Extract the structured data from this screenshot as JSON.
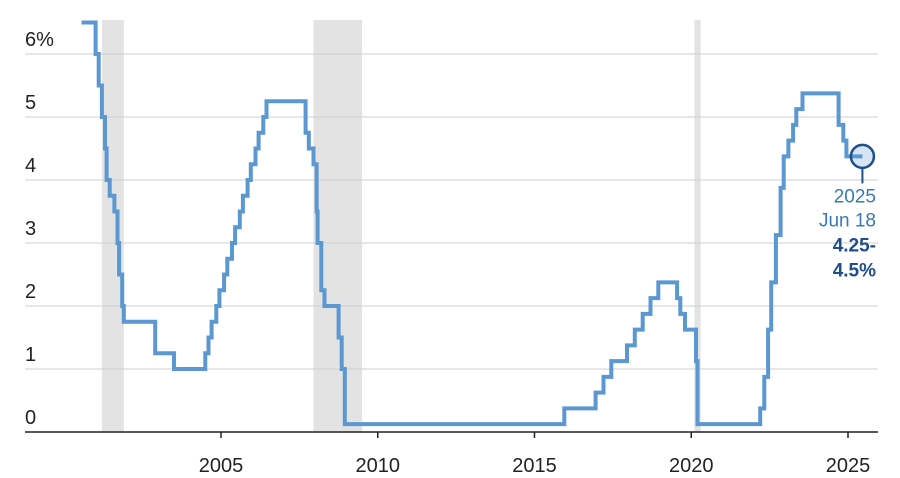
{
  "chart_data": {
    "type": "line",
    "title": "",
    "xlabel": "",
    "ylabel": "",
    "x_ticks": [
      2005,
      2010,
      2015,
      2020,
      2025
    ],
    "y_ticks": [
      {
        "value": 0,
        "label": "0"
      },
      {
        "value": 1,
        "label": "1"
      },
      {
        "value": 2,
        "label": "2"
      },
      {
        "value": 3,
        "label": "3"
      },
      {
        "value": 4,
        "label": "4"
      },
      {
        "value": 5,
        "label": "5"
      },
      {
        "value": 6,
        "label": "6%"
      }
    ],
    "xlim": [
      2000.0,
      2025.9
    ],
    "ylim": [
      0,
      6.6
    ],
    "grid": true,
    "recessions": [
      [
        2001.2,
        2001.9
      ],
      [
        2007.95,
        2009.5
      ],
      [
        2020.1,
        2020.3
      ]
    ],
    "series": [
      {
        "color": "#5b97d1",
        "points": [
          [
            2000.55,
            6.5
          ],
          [
            2001.0,
            6.5
          ],
          [
            2001.0,
            6.0
          ],
          [
            2001.1,
            6.0
          ],
          [
            2001.1,
            5.5
          ],
          [
            2001.2,
            5.5
          ],
          [
            2001.2,
            5.0
          ],
          [
            2001.3,
            5.0
          ],
          [
            2001.3,
            4.5
          ],
          [
            2001.35,
            4.5
          ],
          [
            2001.35,
            4.0
          ],
          [
            2001.45,
            4.0
          ],
          [
            2001.45,
            3.75
          ],
          [
            2001.6,
            3.75
          ],
          [
            2001.6,
            3.5
          ],
          [
            2001.7,
            3.5
          ],
          [
            2001.7,
            3.0
          ],
          [
            2001.75,
            3.0
          ],
          [
            2001.75,
            2.5
          ],
          [
            2001.85,
            2.5
          ],
          [
            2001.85,
            2.0
          ],
          [
            2001.9,
            2.0
          ],
          [
            2001.9,
            1.75
          ],
          [
            2002.9,
            1.75
          ],
          [
            2002.9,
            1.25
          ],
          [
            2003.5,
            1.25
          ],
          [
            2003.5,
            1.0
          ],
          [
            2004.5,
            1.0
          ],
          [
            2004.5,
            1.25
          ],
          [
            2004.6,
            1.25
          ],
          [
            2004.6,
            1.5
          ],
          [
            2004.7,
            1.5
          ],
          [
            2004.7,
            1.75
          ],
          [
            2004.85,
            1.75
          ],
          [
            2004.85,
            2.0
          ],
          [
            2004.95,
            2.0
          ],
          [
            2004.95,
            2.25
          ],
          [
            2005.1,
            2.25
          ],
          [
            2005.1,
            2.5
          ],
          [
            2005.2,
            2.5
          ],
          [
            2005.2,
            2.75
          ],
          [
            2005.35,
            2.75
          ],
          [
            2005.35,
            3.0
          ],
          [
            2005.45,
            3.0
          ],
          [
            2005.45,
            3.25
          ],
          [
            2005.6,
            3.25
          ],
          [
            2005.6,
            3.5
          ],
          [
            2005.7,
            3.5
          ],
          [
            2005.7,
            3.75
          ],
          [
            2005.85,
            3.75
          ],
          [
            2005.85,
            4.0
          ],
          [
            2005.95,
            4.0
          ],
          [
            2005.95,
            4.25
          ],
          [
            2006.1,
            4.25
          ],
          [
            2006.1,
            4.5
          ],
          [
            2006.2,
            4.5
          ],
          [
            2006.2,
            4.75
          ],
          [
            2006.35,
            4.75
          ],
          [
            2006.35,
            5.0
          ],
          [
            2006.45,
            5.0
          ],
          [
            2006.45,
            5.25
          ],
          [
            2007.7,
            5.25
          ],
          [
            2007.7,
            4.75
          ],
          [
            2007.8,
            4.75
          ],
          [
            2007.8,
            4.5
          ],
          [
            2007.95,
            4.5
          ],
          [
            2007.95,
            4.25
          ],
          [
            2008.05,
            4.25
          ],
          [
            2008.05,
            3.5
          ],
          [
            2008.08,
            3.5
          ],
          [
            2008.08,
            3.0
          ],
          [
            2008.2,
            3.0
          ],
          [
            2008.2,
            2.25
          ],
          [
            2008.3,
            2.25
          ],
          [
            2008.3,
            2.0
          ],
          [
            2008.75,
            2.0
          ],
          [
            2008.75,
            1.5
          ],
          [
            2008.85,
            1.5
          ],
          [
            2008.85,
            1.0
          ],
          [
            2008.95,
            1.0
          ],
          [
            2008.95,
            0.125
          ],
          [
            2015.95,
            0.125
          ],
          [
            2015.95,
            0.375
          ],
          [
            2016.95,
            0.375
          ],
          [
            2016.95,
            0.625
          ],
          [
            2017.2,
            0.625
          ],
          [
            2017.2,
            0.875
          ],
          [
            2017.45,
            0.875
          ],
          [
            2017.45,
            1.125
          ],
          [
            2017.95,
            1.125
          ],
          [
            2017.95,
            1.375
          ],
          [
            2018.2,
            1.375
          ],
          [
            2018.2,
            1.625
          ],
          [
            2018.45,
            1.625
          ],
          [
            2018.45,
            1.875
          ],
          [
            2018.7,
            1.875
          ],
          [
            2018.7,
            2.125
          ],
          [
            2018.95,
            2.125
          ],
          [
            2018.95,
            2.375
          ],
          [
            2019.55,
            2.375
          ],
          [
            2019.55,
            2.125
          ],
          [
            2019.65,
            2.125
          ],
          [
            2019.65,
            1.875
          ],
          [
            2019.8,
            1.875
          ],
          [
            2019.8,
            1.625
          ],
          [
            2020.15,
            1.625
          ],
          [
            2020.15,
            1.125
          ],
          [
            2020.2,
            1.125
          ],
          [
            2020.2,
            0.125
          ],
          [
            2022.2,
            0.125
          ],
          [
            2022.2,
            0.375
          ],
          [
            2022.33,
            0.375
          ],
          [
            2022.33,
            0.875
          ],
          [
            2022.45,
            0.875
          ],
          [
            2022.45,
            1.625
          ],
          [
            2022.55,
            1.625
          ],
          [
            2022.55,
            2.375
          ],
          [
            2022.7,
            2.375
          ],
          [
            2022.7,
            3.125
          ],
          [
            2022.85,
            3.125
          ],
          [
            2022.85,
            3.875
          ],
          [
            2022.95,
            3.875
          ],
          [
            2022.95,
            4.375
          ],
          [
            2023.1,
            4.375
          ],
          [
            2023.1,
            4.625
          ],
          [
            2023.25,
            4.625
          ],
          [
            2023.25,
            4.875
          ],
          [
            2023.35,
            4.875
          ],
          [
            2023.35,
            5.125
          ],
          [
            2023.55,
            5.125
          ],
          [
            2023.55,
            5.375
          ],
          [
            2024.7,
            5.375
          ],
          [
            2024.7,
            4.875
          ],
          [
            2024.85,
            4.875
          ],
          [
            2024.85,
            4.625
          ],
          [
            2024.95,
            4.625
          ],
          [
            2024.95,
            4.375
          ],
          [
            2025.46,
            4.375
          ]
        ]
      }
    ],
    "annotation": {
      "x": 2025.46,
      "y": 4.375,
      "year": "2025",
      "date": "Jun 18",
      "value_line1": "4.25-",
      "value_line2": "4.5%",
      "date_color": "#3a78b8",
      "value_color": "#1f4e8c"
    }
  }
}
